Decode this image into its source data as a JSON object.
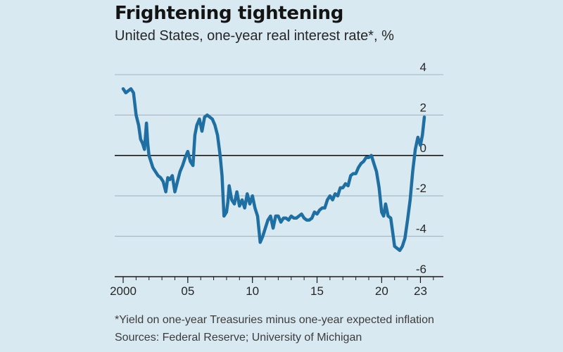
{
  "chart_data": {
    "type": "line",
    "title": "Frightening tightening",
    "subtitle": "United States, one-year real interest rate*, %",
    "ylim": [
      -6,
      4
    ],
    "yticks": [
      {
        "value": 4,
        "label": "4"
      },
      {
        "value": 2,
        "label": "2"
      },
      {
        "value": 0,
        "label": "0"
      },
      {
        "value": -2,
        "label": "-2"
      },
      {
        "value": -4,
        "label": "-4"
      },
      {
        "value": -6,
        "label": "-6"
      }
    ],
    "xlim": [
      2000,
      2024.5
    ],
    "xticks": [
      {
        "value": 2000,
        "label": "2000"
      },
      {
        "value": 2005,
        "label": "05"
      },
      {
        "value": 2010,
        "label": "10"
      },
      {
        "value": 2015,
        "label": "15"
      },
      {
        "value": 2020,
        "label": "20"
      },
      {
        "value": 2023,
        "label": "23"
      }
    ],
    "grid": true,
    "series": [
      {
        "color": "#1f6fa3",
        "x": [
          2000.0,
          2000.2,
          2000.4,
          2000.6,
          2000.8,
          2001.0,
          2001.2,
          2001.35,
          2001.5,
          2001.65,
          2001.8,
          2001.9,
          2002.0,
          2002.15,
          2002.3,
          2002.5,
          2002.7,
          2002.9,
          2003.1,
          2003.3,
          2003.45,
          2003.6,
          2003.8,
          2004.0,
          2004.2,
          2004.4,
          2004.6,
          2004.8,
          2005.0,
          2005.2,
          2005.4,
          2005.55,
          2005.7,
          2005.9,
          2006.1,
          2006.3,
          2006.5,
          2006.7,
          2006.9,
          2007.1,
          2007.3,
          2007.5,
          2007.65,
          2007.8,
          2008.0,
          2008.1,
          2008.2,
          2008.4,
          2008.6,
          2008.8,
          2009.0,
          2009.2,
          2009.4,
          2009.6,
          2009.8,
          2010.0,
          2010.2,
          2010.4,
          2010.6,
          2010.8,
          2011.0,
          2011.2,
          2011.4,
          2011.6,
          2011.8,
          2012.0,
          2012.2,
          2012.4,
          2012.6,
          2012.8,
          2013.0,
          2013.2,
          2013.4,
          2013.6,
          2013.8,
          2014.0,
          2014.2,
          2014.4,
          2014.6,
          2014.8,
          2015.0,
          2015.2,
          2015.4,
          2015.6,
          2015.8,
          2016.0,
          2016.2,
          2016.4,
          2016.6,
          2016.8,
          2017.0,
          2017.2,
          2017.4,
          2017.6,
          2017.8,
          2018.0,
          2018.2,
          2018.4,
          2018.6,
          2018.8,
          2019.0,
          2019.2,
          2019.4,
          2019.6,
          2019.8,
          2020.0,
          2020.15,
          2020.3,
          2020.5,
          2020.7,
          2020.85,
          2021.0,
          2021.2,
          2021.4,
          2021.6,
          2021.8,
          2022.0,
          2022.2,
          2022.4,
          2022.6,
          2022.8,
          2023.0,
          2023.15,
          2023.3
        ],
        "y": [
          3.3,
          3.1,
          3.2,
          3.3,
          3.1,
          2.0,
          1.5,
          0.8,
          0.6,
          0.3,
          1.6,
          0.6,
          0.0,
          -0.3,
          -0.6,
          -0.8,
          -1.0,
          -1.1,
          -1.3,
          -1.8,
          -1.1,
          -1.2,
          -1.0,
          -1.8,
          -1.3,
          -0.8,
          -0.5,
          -0.1,
          0.2,
          -0.3,
          -0.5,
          1.0,
          1.5,
          1.8,
          1.2,
          1.9,
          2.0,
          1.9,
          1.8,
          1.5,
          1.0,
          0.0,
          -1.0,
          -3.0,
          -2.8,
          -2.3,
          -1.5,
          -2.2,
          -2.4,
          -1.8,
          -2.5,
          -2.2,
          -2.6,
          -1.9,
          -2.4,
          -2.0,
          -2.6,
          -3.0,
          -4.3,
          -4.0,
          -3.6,
          -3.2,
          -3.0,
          -3.6,
          -3.0,
          -3.0,
          -3.3,
          -3.1,
          -3.1,
          -3.2,
          -3.0,
          -3.1,
          -3.1,
          -3.0,
          -2.9,
          -3.1,
          -3.2,
          -3.2,
          -3.1,
          -2.8,
          -2.9,
          -2.7,
          -2.6,
          -2.6,
          -2.2,
          -2.0,
          -2.2,
          -1.9,
          -2.0,
          -1.6,
          -1.6,
          -1.4,
          -1.5,
          -1.0,
          -0.9,
          -0.9,
          -0.6,
          -0.4,
          -0.3,
          -0.1,
          -0.1,
          0.0,
          -0.4,
          -0.8,
          -1.6,
          -2.8,
          -3.0,
          -2.4,
          -3.0,
          -3.1,
          -3.8,
          -4.5,
          -4.6,
          -4.7,
          -4.5,
          -4.1,
          -3.2,
          -2.2,
          -0.8,
          0.3,
          0.9,
          0.5,
          1.0,
          1.9
        ]
      }
    ]
  },
  "footnote": "*Yield on one-year Treasuries minus one-year expected inflation",
  "sources": "Sources: Federal Reserve; University of Michigan"
}
